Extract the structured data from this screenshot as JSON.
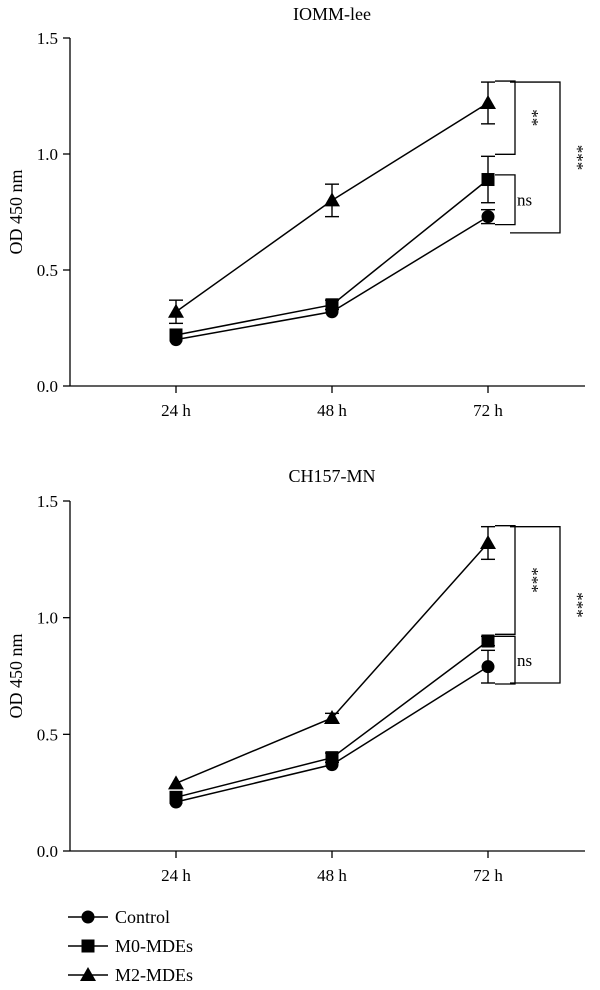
{
  "legend": [
    {
      "name": "Control",
      "marker": "circle"
    },
    {
      "name": "M0-MDEs",
      "marker": "square"
    },
    {
      "name": "M2-MDEs",
      "marker": "triangle"
    }
  ],
  "chart_data": [
    {
      "type": "line",
      "title": "IOMM-lee",
      "ylabel": "OD 450 nm",
      "xlabel": "",
      "categories": [
        "24 h",
        "48 h",
        "72 h"
      ],
      "ylim": [
        0.0,
        1.5
      ],
      "yticks": [
        "0.0",
        "0.5",
        "1.0",
        "1.5"
      ],
      "series": [
        {
          "name": "Control",
          "marker": "circle",
          "values": [
            0.2,
            0.32,
            0.73
          ],
          "errors": [
            0.01,
            0.01,
            0.03
          ]
        },
        {
          "name": "M0-MDEs",
          "marker": "square",
          "values": [
            0.22,
            0.35,
            0.89
          ],
          "errors": [
            0.01,
            0.02,
            0.1
          ]
        },
        {
          "name": "M2-MDEs",
          "marker": "triangle",
          "values": [
            0.32,
            0.8,
            1.22
          ],
          "errors": [
            0.05,
            0.07,
            0.09
          ]
        }
      ],
      "annotations": [
        {
          "text": "**",
          "between": [
            "M2-MDEs",
            "M0-MDEs"
          ]
        },
        {
          "text": "ns",
          "between": [
            "M0-MDEs",
            "Control"
          ]
        },
        {
          "text": "***",
          "between": [
            "M2-MDEs",
            "Control"
          ]
        }
      ]
    },
    {
      "type": "line",
      "title": "CH157-MN",
      "ylabel": "OD 450 nm",
      "xlabel": "",
      "categories": [
        "24 h",
        "48 h",
        "72 h"
      ],
      "ylim": [
        0.0,
        1.5
      ],
      "yticks": [
        "0.0",
        "0.5",
        "1.0",
        "1.5"
      ],
      "series": [
        {
          "name": "Control",
          "marker": "circle",
          "values": [
            0.21,
            0.37,
            0.79
          ],
          "errors": [
            0.01,
            0.01,
            0.07
          ]
        },
        {
          "name": "M0-MDEs",
          "marker": "square",
          "values": [
            0.23,
            0.4,
            0.9
          ],
          "errors": [
            0.01,
            0.02,
            0.02
          ]
        },
        {
          "name": "M2-MDEs",
          "marker": "triangle",
          "values": [
            0.29,
            0.57,
            1.32
          ],
          "errors": [
            0.01,
            0.02,
            0.07
          ]
        }
      ],
      "annotations": [
        {
          "text": "***",
          "between": [
            "M2-MDEs",
            "M0-MDEs"
          ]
        },
        {
          "text": "ns",
          "between": [
            "M0-MDEs",
            "Control"
          ]
        },
        {
          "text": "***",
          "between": [
            "M2-MDEs",
            "Control"
          ]
        }
      ]
    }
  ]
}
